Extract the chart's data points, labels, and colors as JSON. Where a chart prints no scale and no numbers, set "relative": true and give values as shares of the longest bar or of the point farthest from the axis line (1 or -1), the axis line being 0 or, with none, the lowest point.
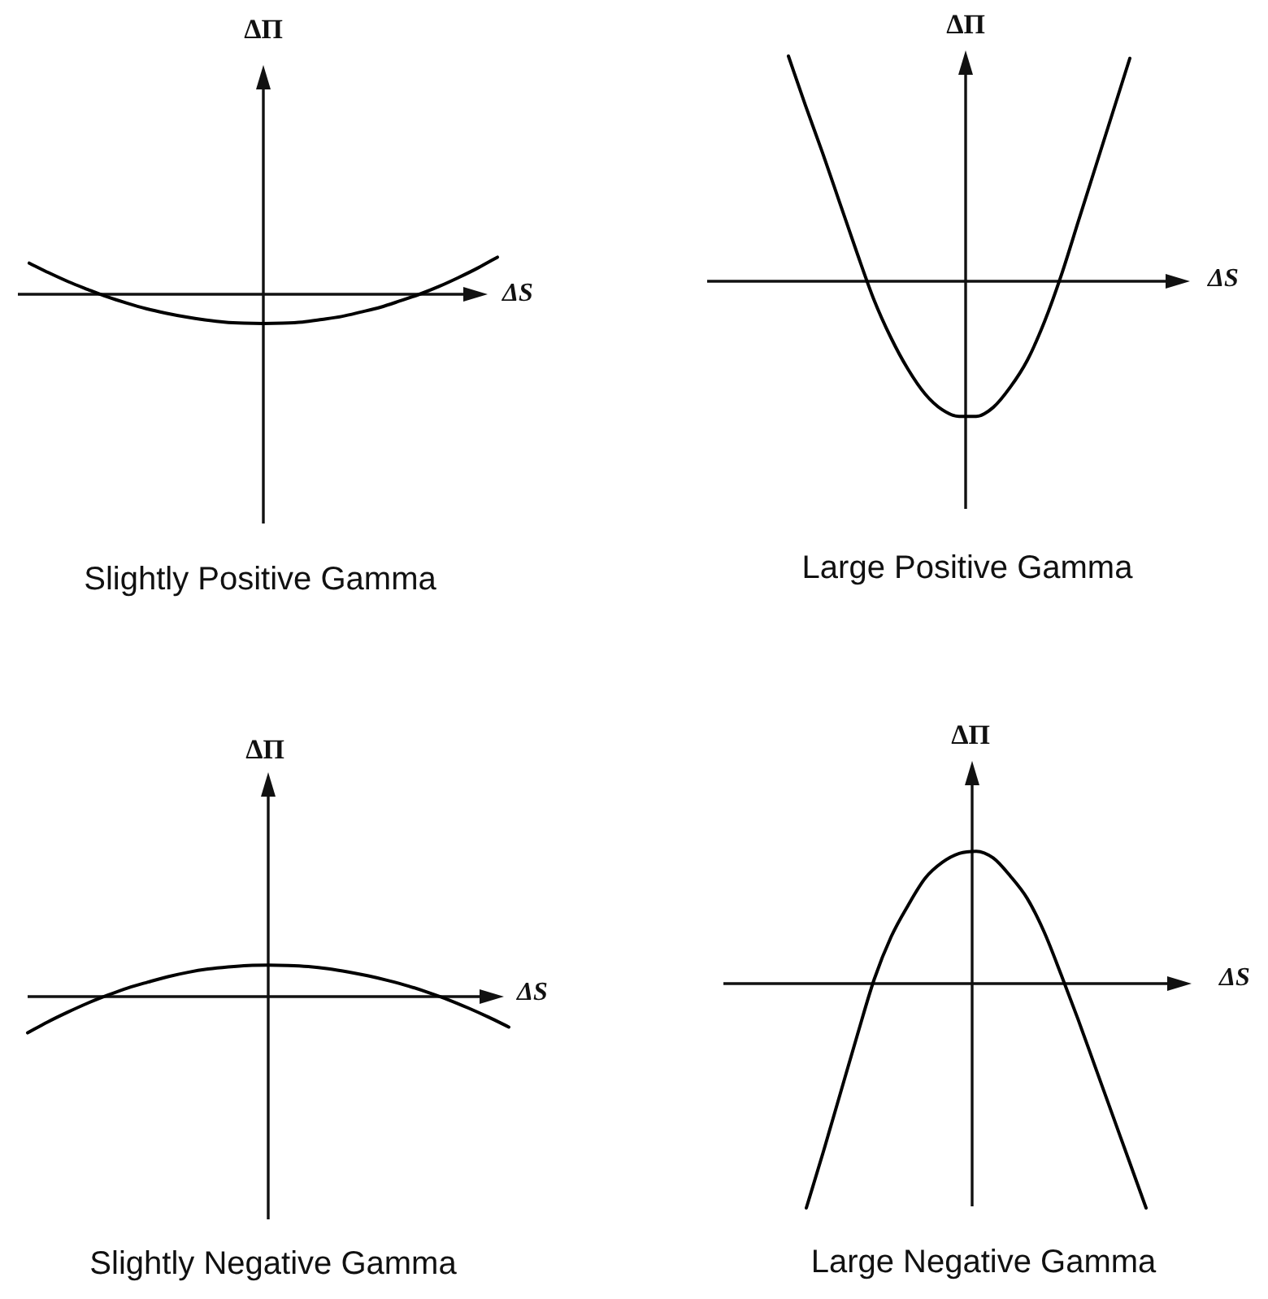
{
  "chart_data": [
    {
      "type": "line",
      "title": "Slightly Positive Gamma",
      "xlabel": "ΔS",
      "ylabel": "ΔΠ",
      "relative": true,
      "color": "#000000",
      "categories": [
        null,
        null,
        null,
        null,
        null,
        null,
        null,
        null,
        null,
        null,
        null,
        null,
        null,
        null,
        null,
        null,
        null,
        null,
        null,
        null,
        null,
        null,
        null,
        null,
        null
      ],
      "values": [
        0.84,
        0.58,
        0.34,
        0.13,
        -0.07,
        -0.24,
        -0.39,
        -0.51,
        -0.61,
        -0.69,
        -0.75,
        -0.78,
        -0.79,
        -0.78,
        -0.75,
        -0.68,
        -0.6,
        -0.48,
        -0.35,
        -0.18,
        0,
        0.21,
        0.45,
        0.71,
        1
      ]
    },
    {
      "type": "line",
      "title": "Large Positive Gamma",
      "xlabel": "ΔS",
      "ylabel": "ΔΠ",
      "relative": true,
      "color": "#000000",
      "categories": [
        null,
        null,
        null,
        null,
        null,
        null,
        null,
        null,
        null,
        null,
        null,
        null,
        null,
        null,
        null,
        null,
        null,
        null,
        null,
        null,
        null
      ],
      "values": [
        1,
        0.78,
        0.57,
        0.35,
        0.13,
        -0.08,
        -0.25,
        -0.39,
        -0.5,
        -0.57,
        -0.6,
        -0.6,
        -0.56,
        -0.47,
        -0.35,
        -0.18,
        0.03,
        0.27,
        0.51,
        0.75,
        0.99
      ]
    },
    {
      "type": "line",
      "title": "Slightly Negative Gamma",
      "xlabel": "ΔS",
      "ylabel": "ΔΠ",
      "relative": true,
      "color": "#000000",
      "categories": [
        null,
        null,
        null,
        null,
        null,
        null,
        null,
        null,
        null,
        null,
        null,
        null,
        null,
        null,
        null,
        null,
        null,
        null,
        null,
        null,
        null,
        null,
        null,
        null,
        null
      ],
      "values": [
        -1,
        -0.7,
        -0.43,
        -0.18,
        0.04,
        0.24,
        0.4,
        0.55,
        0.67,
        0.76,
        0.82,
        0.86,
        0.87,
        0.86,
        0.83,
        0.77,
        0.68,
        0.57,
        0.44,
        0.29,
        0.11,
        -0.09,
        -0.32,
        -0.57,
        -0.84
      ]
    },
    {
      "type": "line",
      "title": "Large Negative Gamma",
      "xlabel": "ΔS",
      "ylabel": "ΔΠ",
      "relative": true,
      "color": "#000000",
      "categories": [
        null,
        null,
        null,
        null,
        null,
        null,
        null,
        null,
        null,
        null,
        null,
        null,
        null,
        null,
        null,
        null,
        null,
        null,
        null,
        null,
        null
      ],
      "values": [
        -1,
        -0.75,
        -0.49,
        -0.23,
        0.02,
        0.21,
        0.35,
        0.47,
        0.54,
        0.58,
        0.59,
        0.56,
        0.48,
        0.38,
        0.23,
        0.04,
        -0.16,
        -0.37,
        -0.58,
        -0.79,
        -1
      ]
    }
  ]
}
